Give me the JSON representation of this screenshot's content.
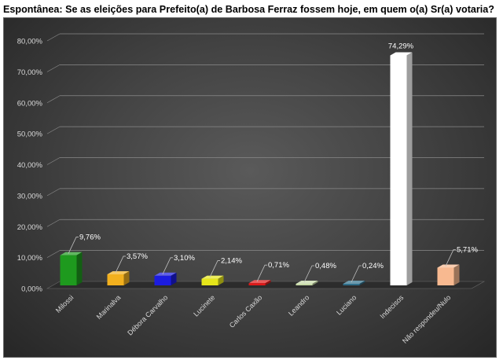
{
  "chart_data": {
    "type": "bar",
    "title": "Espontânea: Se as eleições para Prefeito(a) de Barbosa Ferraz fossem hoje, em quem o(a) Sr(a) votaria?",
    "categories": [
      "Milossi",
      "Marinalva",
      "Débora Carvalho",
      "Lucinete",
      "Carlos Caxão",
      "Leandro",
      "Luciano",
      "Indecisos",
      "Não respondeu/Nulo"
    ],
    "values": [
      9.76,
      3.57,
      3.1,
      2.14,
      0.71,
      0.48,
      0.24,
      74.29,
      5.71
    ],
    "data_labels": [
      "9,76%",
      "3,57%",
      "3,10%",
      "2,14%",
      "0,71%",
      "0,48%",
      "0,24%",
      "74,29%",
      "5,71%"
    ],
    "colors": [
      "#1e9a1e",
      "#f2b01e",
      "#1c1ce0",
      "#e6e61a",
      "#e01818",
      "#c6d9a6",
      "#2e6e8a",
      "#ffffff",
      "#f8b990"
    ],
    "ylim": [
      0,
      80
    ],
    "y_ticks": [
      0,
      10,
      20,
      30,
      40,
      50,
      60,
      70,
      80
    ],
    "y_tick_labels": [
      "0,00%",
      "10,00%",
      "20,00%",
      "30,00%",
      "40,00%",
      "50,00%",
      "60,00%",
      "70,00%",
      "80,00%"
    ],
    "grid": true,
    "xlabel": "",
    "ylabel": ""
  }
}
